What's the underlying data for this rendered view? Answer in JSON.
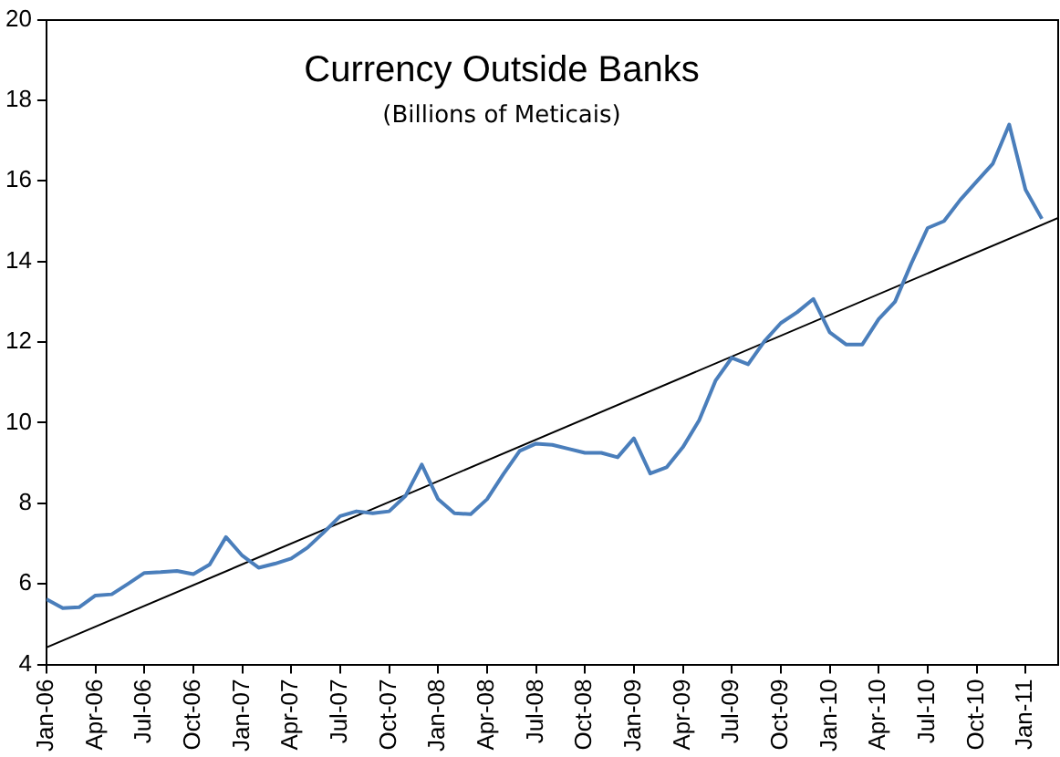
{
  "chart_data": {
    "type": "line",
    "title": "Currency Outside Banks",
    "subtitle": "(Billions of Meticais)",
    "x": [
      "2006-01",
      "2006-02",
      "2006-03",
      "2006-04",
      "2006-05",
      "2006-06",
      "2006-07",
      "2006-08",
      "2006-09",
      "2006-10",
      "2006-11",
      "2006-12",
      "2007-01",
      "2007-02",
      "2007-03",
      "2007-04",
      "2007-05",
      "2007-06",
      "2007-07",
      "2007-08",
      "2007-09",
      "2007-10",
      "2007-11",
      "2007-12",
      "2008-01",
      "2008-02",
      "2008-03",
      "2008-04",
      "2008-05",
      "2008-06",
      "2008-07",
      "2008-08",
      "2008-09",
      "2008-10",
      "2008-11",
      "2008-12",
      "2009-01",
      "2009-02",
      "2009-03",
      "2009-04",
      "2009-05",
      "2009-06",
      "2009-07",
      "2009-08",
      "2009-09",
      "2009-10",
      "2009-11",
      "2009-12",
      "2010-01",
      "2010-02",
      "2010-03",
      "2010-04",
      "2010-05",
      "2010-06",
      "2010-07",
      "2010-08",
      "2010-09",
      "2010-10",
      "2010-11",
      "2010-12",
      "2011-01",
      "2011-02"
    ],
    "series": [
      {
        "color": "#4a7ebb",
        "values": [
          5.62,
          5.4,
          5.42,
          5.71,
          5.74,
          6.0,
          6.27,
          6.29,
          6.32,
          6.24,
          6.48,
          7.16,
          6.7,
          6.4,
          6.5,
          6.63,
          6.9,
          7.28,
          7.68,
          7.8,
          7.75,
          7.8,
          8.18,
          8.96,
          8.1,
          7.75,
          7.73,
          8.1,
          8.72,
          9.3,
          9.48,
          9.45,
          9.35,
          9.25,
          9.25,
          9.14,
          9.61,
          8.74,
          8.89,
          9.39,
          10.06,
          11.04,
          11.61,
          11.45,
          12.02,
          12.47,
          12.74,
          13.07,
          12.24,
          11.94,
          11.94,
          12.57,
          13.0,
          13.95,
          14.83,
          15.0,
          15.53,
          15.98,
          16.43,
          17.4,
          15.78,
          15.06
        ]
      },
      {
        "type": "line",
        "color": "#000000",
        "x": [
          "2006-01",
          "2011-03"
        ],
        "values": [
          4.42,
          15.08
        ]
      }
    ],
    "xlim": [
      "2006-01",
      "2011-03"
    ],
    "xticks": [
      {
        "value": "2006-01",
        "label": "Jan-06"
      },
      {
        "value": "2006-04",
        "label": "Apr-06"
      },
      {
        "value": "2006-07",
        "label": "Jul-06"
      },
      {
        "value": "2006-10",
        "label": "Oct-06"
      },
      {
        "value": "2007-01",
        "label": "Jan-07"
      },
      {
        "value": "2007-04",
        "label": "Apr-07"
      },
      {
        "value": "2007-07",
        "label": "Jul-07"
      },
      {
        "value": "2007-10",
        "label": "Oct-07"
      },
      {
        "value": "2008-01",
        "label": "Jan-08"
      },
      {
        "value": "2008-04",
        "label": "Apr-08"
      },
      {
        "value": "2008-07",
        "label": "Jul-08"
      },
      {
        "value": "2008-10",
        "label": "Oct-08"
      },
      {
        "value": "2009-01",
        "label": "Jan-09"
      },
      {
        "value": "2009-04",
        "label": "Apr-09"
      },
      {
        "value": "2009-07",
        "label": "Jul-09"
      },
      {
        "value": "2009-10",
        "label": "Oct-09"
      },
      {
        "value": "2010-01",
        "label": "Jan-10"
      },
      {
        "value": "2010-04",
        "label": "Apr-10"
      },
      {
        "value": "2010-07",
        "label": "Jul-10"
      },
      {
        "value": "2010-10",
        "label": "Oct-10"
      },
      {
        "value": "2011-01",
        "label": "Jan-11"
      }
    ],
    "ylim": [
      4,
      20
    ],
    "yticks": [
      4,
      6,
      8,
      10,
      12,
      14,
      16,
      18,
      20
    ],
    "grid": false,
    "legend": false,
    "marker": "none",
    "line_style": "solid"
  }
}
